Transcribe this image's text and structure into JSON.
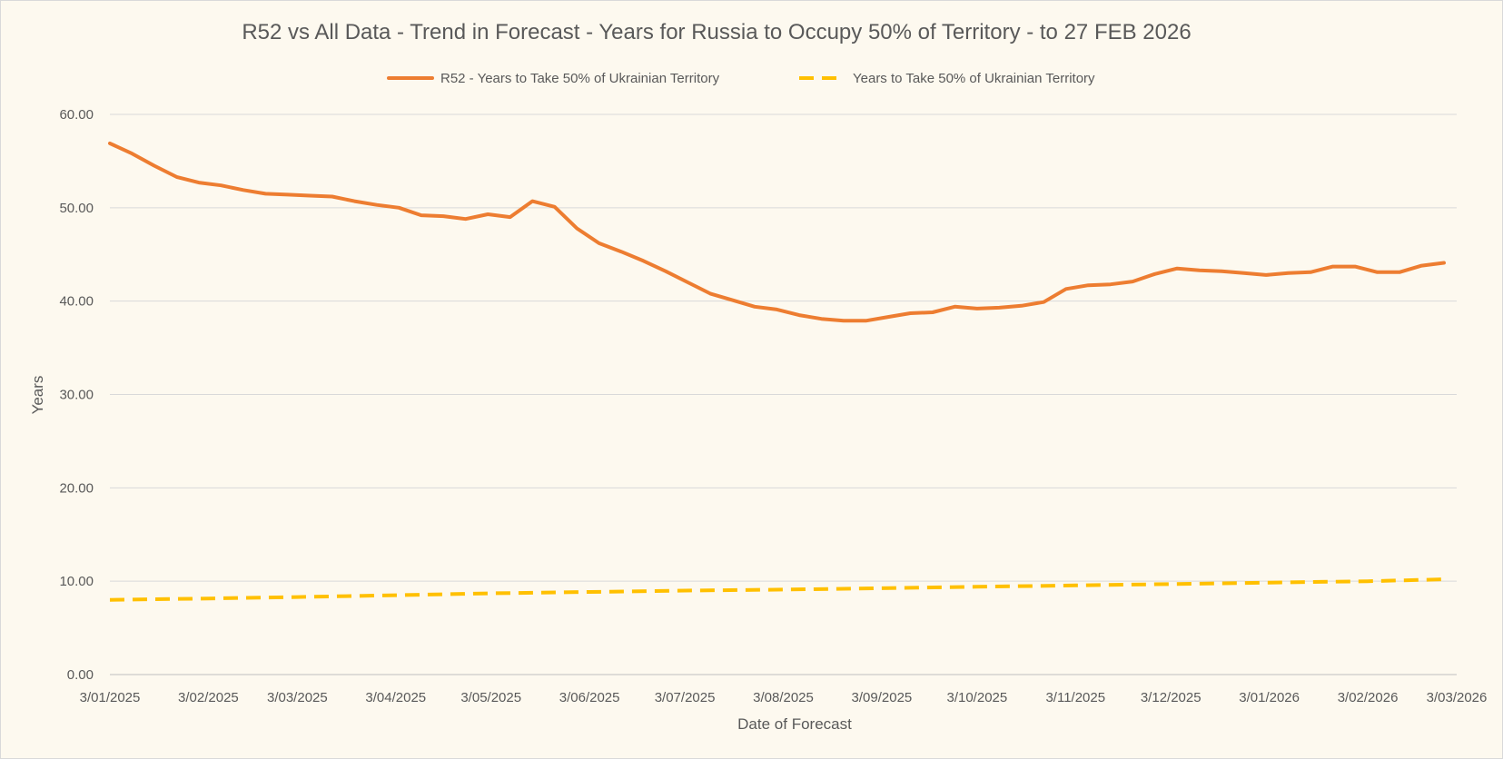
{
  "chart_data": {
    "type": "line",
    "title": "R52 vs All Data  - Trend in Forecast - Years for Russia to Occupy 50% of Territory - to 27 FEB 2026",
    "xlabel": "Date of Forecast",
    "ylabel": "Years",
    "ylim": [
      0,
      60
    ],
    "yticks": [
      "0.00",
      "10.00",
      "20.00",
      "30.00",
      "40.00",
      "50.00",
      "60.00"
    ],
    "xlim": [
      "2025-01-03",
      "2026-03-03"
    ],
    "xticks": [
      {
        "date": "2025-01-03",
        "label": "3/01/2025"
      },
      {
        "date": "2025-02-03",
        "label": "3/02/2025"
      },
      {
        "date": "2025-03-03",
        "label": "3/03/2025"
      },
      {
        "date": "2025-04-03",
        "label": "3/04/2025"
      },
      {
        "date": "2025-05-03",
        "label": "3/05/2025"
      },
      {
        "date": "2025-06-03",
        "label": "3/06/2025"
      },
      {
        "date": "2025-07-03",
        "label": "3/07/2025"
      },
      {
        "date": "2025-08-03",
        "label": "3/08/2025"
      },
      {
        "date": "2025-09-03",
        "label": "3/09/2025"
      },
      {
        "date": "2025-10-03",
        "label": "3/10/2025"
      },
      {
        "date": "2025-11-03",
        "label": "3/11/2025"
      },
      {
        "date": "2025-12-03",
        "label": "3/12/2025"
      },
      {
        "date": "2026-01-03",
        "label": "3/01/2026"
      },
      {
        "date": "2026-02-03",
        "label": "3/02/2026"
      },
      {
        "date": "2026-03-03",
        "label": "3/03/2026"
      }
    ],
    "grid": true,
    "legend_position": "top",
    "series": [
      {
        "name": "R52 - Years to Take  50% of Ukrainian Territory",
        "color": "#ed7d31",
        "style": "solid",
        "points": [
          [
            "2025-01-03",
            56.9
          ],
          [
            "2025-01-10",
            55.8
          ],
          [
            "2025-01-17",
            54.5
          ],
          [
            "2025-01-24",
            53.3
          ],
          [
            "2025-01-31",
            52.7
          ],
          [
            "2025-02-07",
            52.4
          ],
          [
            "2025-02-14",
            51.9
          ],
          [
            "2025-02-21",
            51.5
          ],
          [
            "2025-02-28",
            51.4
          ],
          [
            "2025-03-07",
            51.3
          ],
          [
            "2025-03-14",
            51.2
          ],
          [
            "2025-03-21",
            50.7
          ],
          [
            "2025-03-28",
            50.3
          ],
          [
            "2025-04-04",
            50.0
          ],
          [
            "2025-04-11",
            49.2
          ],
          [
            "2025-04-18",
            49.1
          ],
          [
            "2025-04-25",
            48.8
          ],
          [
            "2025-05-02",
            49.3
          ],
          [
            "2025-05-09",
            49.0
          ],
          [
            "2025-05-16",
            50.7
          ],
          [
            "2025-05-23",
            50.1
          ],
          [
            "2025-05-30",
            47.8
          ],
          [
            "2025-06-06",
            46.2
          ],
          [
            "2025-06-13",
            45.3
          ],
          [
            "2025-06-20",
            44.3
          ],
          [
            "2025-06-27",
            43.2
          ],
          [
            "2025-07-04",
            42.0
          ],
          [
            "2025-07-11",
            40.8
          ],
          [
            "2025-07-18",
            40.1
          ],
          [
            "2025-07-25",
            39.4
          ],
          [
            "2025-08-01",
            39.1
          ],
          [
            "2025-08-08",
            38.5
          ],
          [
            "2025-08-15",
            38.1
          ],
          [
            "2025-08-22",
            37.9
          ],
          [
            "2025-08-29",
            37.9
          ],
          [
            "2025-09-05",
            38.3
          ],
          [
            "2025-09-12",
            38.7
          ],
          [
            "2025-09-19",
            38.8
          ],
          [
            "2025-09-26",
            39.4
          ],
          [
            "2025-10-03",
            39.2
          ],
          [
            "2025-10-10",
            39.3
          ],
          [
            "2025-10-17",
            39.5
          ],
          [
            "2025-10-24",
            39.9
          ],
          [
            "2025-10-31",
            41.3
          ],
          [
            "2025-11-07",
            41.7
          ],
          [
            "2025-11-14",
            41.8
          ],
          [
            "2025-11-21",
            42.1
          ],
          [
            "2025-11-28",
            42.9
          ],
          [
            "2025-12-05",
            43.5
          ],
          [
            "2025-12-12",
            43.3
          ],
          [
            "2025-12-19",
            43.2
          ],
          [
            "2025-12-26",
            43.0
          ],
          [
            "2026-01-02",
            42.8
          ],
          [
            "2026-01-09",
            43.0
          ],
          [
            "2026-01-16",
            43.1
          ],
          [
            "2026-01-23",
            43.7
          ],
          [
            "2026-01-30",
            43.7
          ],
          [
            "2026-02-06",
            43.1
          ],
          [
            "2026-02-13",
            43.1
          ],
          [
            "2026-02-20",
            43.8
          ],
          [
            "2026-02-27",
            44.1
          ]
        ]
      },
      {
        "name": "Years to Take  50% of Ukrainian Territory",
        "color": "#ffc000",
        "style": "dashed",
        "points": [
          [
            "2025-01-03",
            8.0
          ],
          [
            "2025-02-03",
            8.15
          ],
          [
            "2025-03-03",
            8.3
          ],
          [
            "2025-04-03",
            8.5
          ],
          [
            "2025-05-03",
            8.7
          ],
          [
            "2025-06-03",
            8.85
          ],
          [
            "2025-07-03",
            9.0
          ],
          [
            "2025-08-03",
            9.1
          ],
          [
            "2025-09-03",
            9.25
          ],
          [
            "2025-10-03",
            9.4
          ],
          [
            "2025-11-03",
            9.55
          ],
          [
            "2025-12-03",
            9.7
          ],
          [
            "2026-01-03",
            9.85
          ],
          [
            "2026-02-03",
            10.0
          ],
          [
            "2026-02-27",
            10.2
          ]
        ]
      }
    ]
  }
}
